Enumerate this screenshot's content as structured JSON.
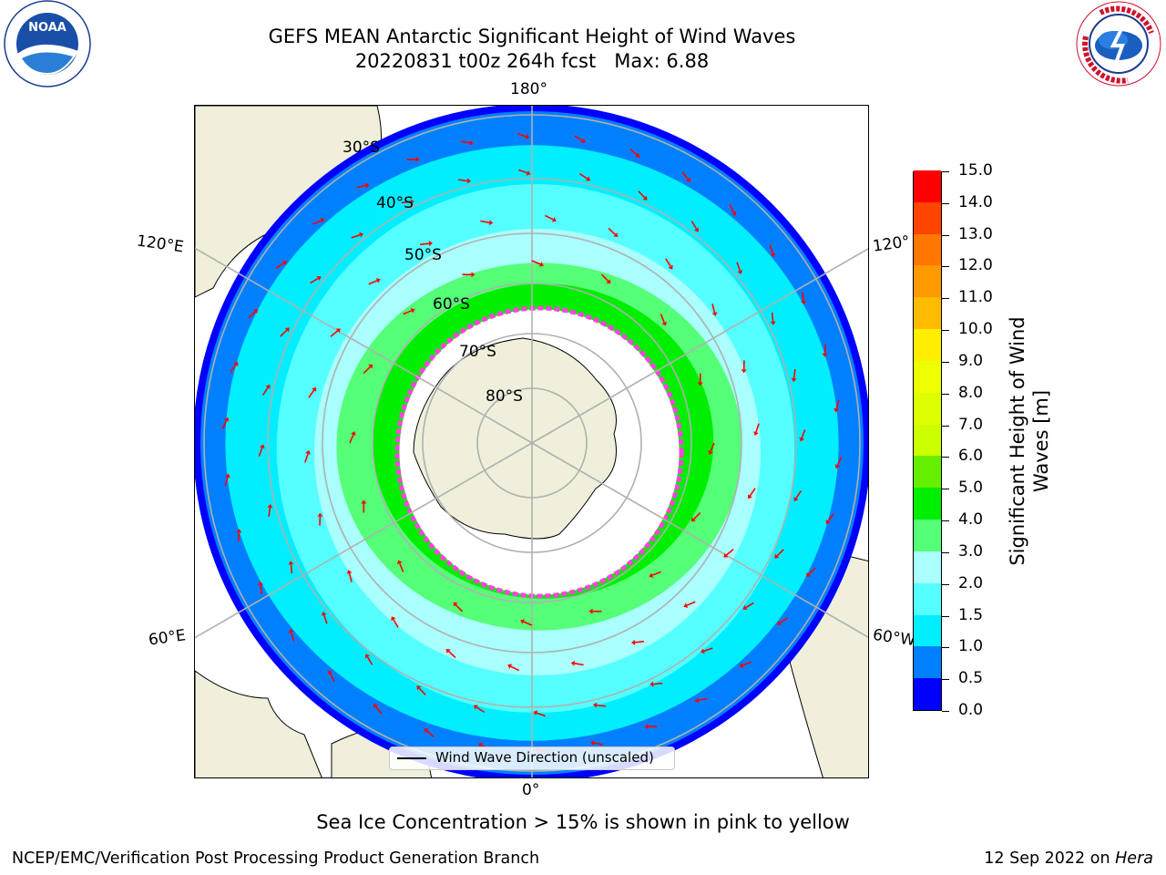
{
  "title": {
    "line1": "GEFS MEAN Antarctic Significant Height of Wind Waves",
    "line2_date": "20220831 t00z 264h fcst",
    "line2_max": "Max: 6.88"
  },
  "logos": {
    "left": "NOAA",
    "right": "NATIONAL WEATHER SERVICE"
  },
  "map": {
    "projection": "south-polar-stereographic",
    "longitude_labels": [
      {
        "id": "lon-180",
        "text": "180°"
      },
      {
        "id": "lon-0",
        "text": "0°"
      },
      {
        "id": "lon-120e",
        "text": "120°E"
      },
      {
        "id": "lon-60e",
        "text": "60°E"
      },
      {
        "id": "lon-120w",
        "text": "120°"
      },
      {
        "id": "lon-60w",
        "text": "60°W"
      }
    ],
    "latitude_labels": [
      "30°S",
      "40°S",
      "50°S",
      "60°S",
      "70°S",
      "80°S"
    ],
    "colors": {
      "land": "#efefdb",
      "ice_free_pack": "#ffffff",
      "ice_edge": "#ff44dd",
      "arrow": "#ff0000",
      "gridline": "#b0b0b0"
    }
  },
  "colorbar": {
    "label": "Significant Height of Wind Waves [m]",
    "label_line1": "Significant Height of Wind",
    "label_line2": "Waves [m]",
    "ticks": [
      "15.0",
      "14.0",
      "13.0",
      "12.0",
      "11.0",
      "10.0",
      "9.0",
      "8.0",
      "7.0",
      "6.0",
      "5.0",
      "4.0",
      "3.0",
      "2.0",
      "1.5",
      "1.0",
      "0.5",
      "0.0"
    ],
    "bands": [
      {
        "label": "0.0-0.5",
        "color": "#0000ff"
      },
      {
        "label": "0.5-1.0",
        "color": "#0080ff"
      },
      {
        "label": "1.0-1.5",
        "color": "#00eeff"
      },
      {
        "label": "1.5-2.0",
        "color": "#55ffff"
      },
      {
        "label": "2.0-3.0",
        "color": "#aaffff"
      },
      {
        "label": "3.0-4.0",
        "color": "#55ff77"
      },
      {
        "label": "4.0-5.0",
        "color": "#00ee00"
      },
      {
        "label": "5.0-6.0",
        "color": "#66ee00"
      },
      {
        "label": "6.0-7.0",
        "color": "#ccff00"
      },
      {
        "label": "7.0-8.0",
        "color": "#ddff00"
      },
      {
        "label": "8.0-9.0",
        "color": "#eeff00"
      },
      {
        "label": "9.0-10.0",
        "color": "#ffee00"
      },
      {
        "label": "10.0-11.0",
        "color": "#ffbb00"
      },
      {
        "label": "11.0-12.0",
        "color": "#ff9900"
      },
      {
        "label": "12.0-13.0",
        "color": "#ff7700"
      },
      {
        "label": "13.0-14.0",
        "color": "#ff4400"
      },
      {
        "label": "14.0-15.0",
        "color": "#ff0000"
      }
    ]
  },
  "legend": {
    "entry": "Wind Wave Direction (unscaled)"
  },
  "note": "Sea Ice Concentration > 15% is shown in pink to yellow",
  "footer": {
    "left": "NCEP/EMC/Verification Post Processing Product Generation Branch",
    "right_date": "12 Sep 2022 on",
    "right_host": "Hera"
  }
}
